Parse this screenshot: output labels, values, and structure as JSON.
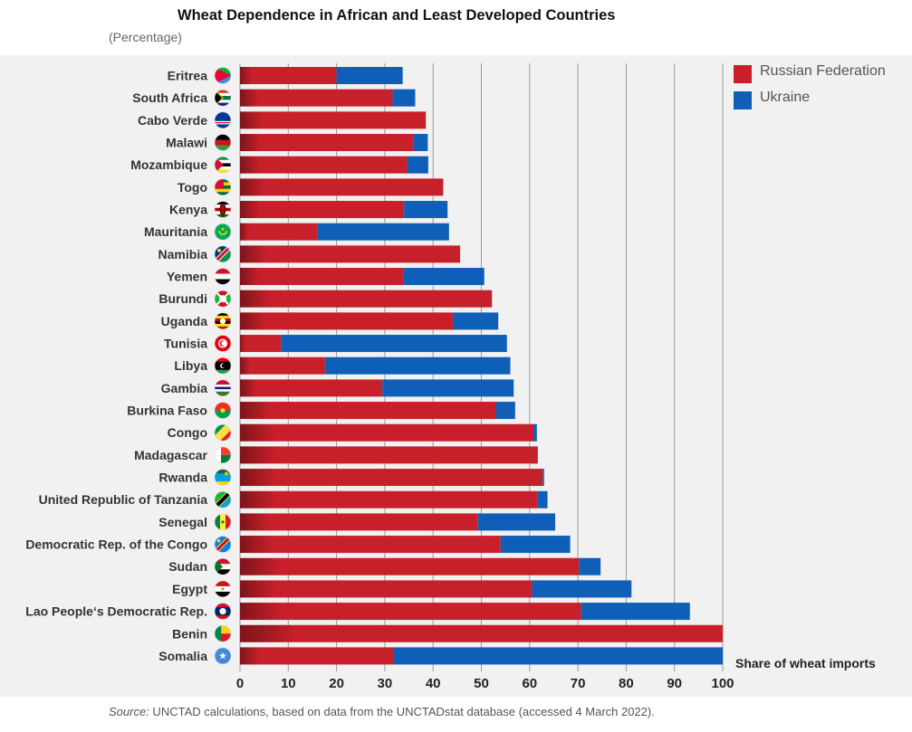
{
  "title": "Wheat Dependence in African and Least Developed Countries",
  "subtitle": "(Percentage)",
  "source": {
    "label": "Source:",
    "text": " UNCTAD calculations, based on data from the UNCTADstat database (accessed 4 March 2022)."
  },
  "colors": {
    "russia": "#c8202a",
    "ukraine": "#0f5fb8",
    "panel": "#f1f1f1",
    "grid": "#9a9a9a"
  },
  "chart_data": {
    "type": "bar",
    "orientation": "horizontal",
    "stacked": true,
    "xlabel": "Share of wheat imports",
    "xlim": [
      0,
      100
    ],
    "xticks": [
      0,
      10,
      20,
      30,
      40,
      50,
      60,
      70,
      80,
      90,
      100
    ],
    "grid": true,
    "legend_position": "top-right",
    "categories": [
      "Eritrea",
      "South Africa",
      "Cabo Verde",
      "Malawi",
      "Mozambique",
      "Togo",
      "Kenya",
      "Mauritania",
      "Namibia",
      "Yemen",
      "Burundi",
      "Uganda",
      "Tunisia",
      "Libya",
      "Gambia",
      "Burkina Faso",
      "Congo",
      "Madagascar",
      "Rwanda",
      "United Republic of Tanzania",
      "Senegal",
      "Democratic Rep. of the Congo",
      "Sudan",
      "Egypt",
      "Lao People‘s Democratic Rep.",
      "Benin",
      "Somalia"
    ],
    "flag_icons": [
      "eritrea-flag-icon",
      "south-africa-flag-icon",
      "cabo-verde-flag-icon",
      "malawi-flag-icon",
      "mozambique-flag-icon",
      "togo-flag-icon",
      "kenya-flag-icon",
      "mauritania-flag-icon",
      "namibia-flag-icon",
      "yemen-flag-icon",
      "burundi-flag-icon",
      "uganda-flag-icon",
      "tunisia-flag-icon",
      "libya-flag-icon",
      "gambia-flag-icon",
      "burkina-faso-flag-icon",
      "congo-flag-icon",
      "madagascar-flag-icon",
      "rwanda-flag-icon",
      "tanzania-flag-icon",
      "senegal-flag-icon",
      "dr-congo-flag-icon",
      "sudan-flag-icon",
      "egypt-flag-icon",
      "laos-flag-icon",
      "benin-flag-icon",
      "somalia-flag-icon"
    ],
    "series": [
      {
        "name": "Russian Federation",
        "color": "#c8202a",
        "values": [
          20.0,
          31.6,
          38.5,
          35.9,
          34.7,
          42.1,
          34.0,
          16.0,
          45.6,
          33.8,
          52.2,
          44.1,
          8.5,
          17.6,
          29.5,
          53.0,
          60.8,
          61.7,
          62.7,
          61.7,
          49.3,
          54.0,
          70.2,
          60.5,
          70.7,
          100.0,
          31.8
        ]
      },
      {
        "name": "Ukraine",
        "color": "#0f5fb8",
        "values": [
          13.7,
          4.7,
          0.0,
          3.0,
          4.3,
          0.0,
          9.0,
          27.3,
          0.0,
          16.8,
          0.0,
          9.4,
          46.8,
          38.4,
          27.2,
          4.0,
          0.7,
          0.0,
          0.3,
          2.0,
          16.0,
          14.4,
          4.5,
          20.6,
          22.5,
          0.0,
          68.2
        ]
      }
    ]
  }
}
